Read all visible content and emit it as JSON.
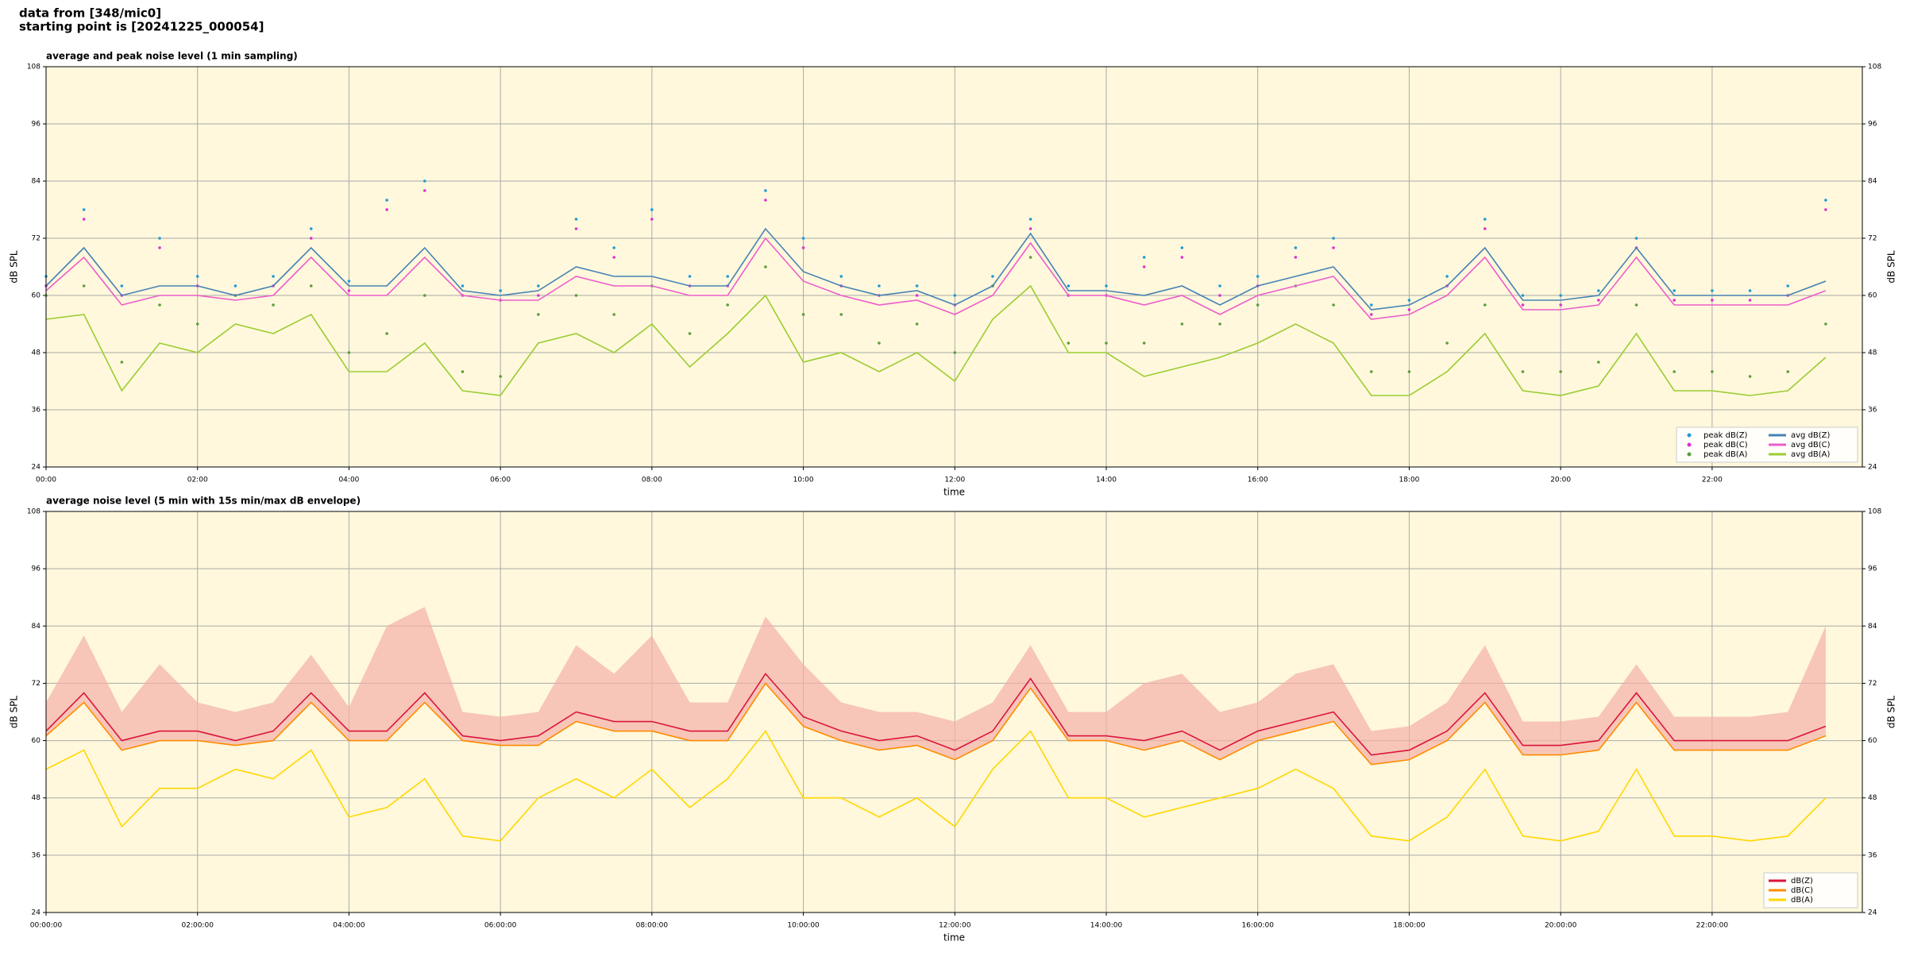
{
  "header": {
    "title": "data from [348/mic0]",
    "subtitle": "starting point is [20241225_000054]"
  },
  "chart_data": [
    {
      "type": "line",
      "title": "average and peak noise level (1 min sampling)",
      "xlabel": "time",
      "ylabel": "dB SPL",
      "grid": true,
      "legend": "lower right",
      "legend_columns": 2,
      "background": "#fff8dc",
      "x": [
        "00:00",
        "00:30",
        "01:00",
        "01:30",
        "02:00",
        "02:30",
        "03:00",
        "03:30",
        "04:00",
        "04:30",
        "05:00",
        "05:30",
        "06:00",
        "06:30",
        "07:00",
        "07:30",
        "08:00",
        "08:30",
        "09:00",
        "09:30",
        "10:00",
        "10:30",
        "11:00",
        "11:30",
        "12:00",
        "12:30",
        "13:00",
        "13:30",
        "14:00",
        "14:30",
        "15:00",
        "15:30",
        "16:00",
        "16:30",
        "17:00",
        "17:30",
        "18:00",
        "18:30",
        "19:00",
        "19:30",
        "20:00",
        "20:30",
        "21:00",
        "21:30",
        "22:00",
        "22:30",
        "23:00",
        "23:30"
      ],
      "xlim": [
        "00:00",
        "23:59"
      ],
      "xticks": [
        "00:00",
        "02:00",
        "04:00",
        "06:00",
        "08:00",
        "10:00",
        "12:00",
        "14:00",
        "16:00",
        "18:00",
        "20:00",
        "22:00"
      ],
      "ylim": [
        24,
        108
      ],
      "yticks": [
        24,
        36,
        48,
        60,
        72,
        84,
        96,
        108
      ],
      "series": [
        {
          "name": "peak dB(Z)",
          "color": "#1f9bd6",
          "style": "points",
          "values": [
            64,
            78,
            62,
            72,
            64,
            62,
            64,
            74,
            63,
            80,
            84,
            62,
            61,
            62,
            76,
            70,
            78,
            64,
            64,
            82,
            72,
            64,
            62,
            62,
            60,
            64,
            76,
            62,
            62,
            68,
            70,
            62,
            64,
            70,
            72,
            58,
            59,
            64,
            76,
            60,
            60,
            61,
            72,
            61,
            61,
            61,
            62,
            80
          ]
        },
        {
          "name": "peak dB(C)",
          "color": "#e030d0",
          "style": "points",
          "values": [
            62,
            76,
            60,
            70,
            62,
            60,
            62,
            72,
            61,
            78,
            82,
            60,
            59,
            60,
            74,
            68,
            76,
            62,
            62,
            80,
            70,
            62,
            60,
            60,
            58,
            62,
            74,
            60,
            60,
            66,
            68,
            60,
            62,
            68,
            70,
            56,
            57,
            62,
            74,
            58,
            58,
            59,
            70,
            59,
            59,
            59,
            60,
            78
          ]
        },
        {
          "name": "peak dB(A)",
          "color": "#5a9e3a",
          "style": "points",
          "values": [
            60,
            62,
            46,
            58,
            54,
            60,
            58,
            62,
            48,
            52,
            60,
            44,
            43,
            56,
            60,
            56,
            62,
            52,
            58,
            66,
            56,
            56,
            50,
            54,
            48,
            62,
            68,
            50,
            50,
            50,
            54,
            54,
            58,
            62,
            58,
            44,
            44,
            50,
            58,
            44,
            44,
            46,
            58,
            44,
            44,
            43,
            44,
            54
          ]
        },
        {
          "name": "avg dB(Z)",
          "color": "#4682b4",
          "style": "line",
          "values": [
            62,
            70,
            60,
            62,
            62,
            60,
            62,
            70,
            62,
            62,
            70,
            61,
            60,
            61,
            66,
            64,
            64,
            62,
            62,
            74,
            65,
            62,
            60,
            61,
            58,
            62,
            73,
            61,
            61,
            60,
            62,
            58,
            62,
            64,
            66,
            57,
            58,
            62,
            70,
            59,
            59,
            60,
            70,
            60,
            60,
            60,
            60,
            63
          ]
        },
        {
          "name": "avg dB(C)",
          "color": "#ee5ccc",
          "style": "line",
          "values": [
            61,
            68,
            58,
            60,
            60,
            59,
            60,
            68,
            60,
            60,
            68,
            60,
            59,
            59,
            64,
            62,
            62,
            60,
            60,
            72,
            63,
            60,
            58,
            59,
            56,
            60,
            71,
            60,
            60,
            58,
            60,
            56,
            60,
            62,
            64,
            55,
            56,
            60,
            68,
            57,
            57,
            58,
            68,
            58,
            58,
            58,
            58,
            61
          ]
        },
        {
          "name": "avg dB(A)",
          "color": "#9acd32",
          "style": "line",
          "values": [
            55,
            56,
            40,
            50,
            48,
            54,
            52,
            56,
            44,
            44,
            50,
            40,
            39,
            50,
            52,
            48,
            54,
            45,
            52,
            60,
            46,
            48,
            44,
            48,
            42,
            55,
            62,
            48,
            48,
            43,
            45,
            47,
            50,
            54,
            50,
            39,
            39,
            44,
            52,
            40,
            39,
            41,
            52,
            40,
            40,
            39,
            40,
            47
          ]
        }
      ]
    },
    {
      "type": "line",
      "title": "average noise level (5 min with 15s min/max dB envelope)",
      "xlabel": "time",
      "ylabel": "dB SPL",
      "grid": true,
      "legend": "lower right",
      "legend_columns": 1,
      "background": "#fff8dc",
      "x": [
        "00:00:00",
        "00:30:00",
        "01:00:00",
        "01:30:00",
        "02:00:00",
        "02:30:00",
        "03:00:00",
        "03:30:00",
        "04:00:00",
        "04:30:00",
        "05:00:00",
        "05:30:00",
        "06:00:00",
        "06:30:00",
        "07:00:00",
        "07:30:00",
        "08:00:00",
        "08:30:00",
        "09:00:00",
        "09:30:00",
        "10:00:00",
        "10:30:00",
        "11:00:00",
        "11:30:00",
        "12:00:00",
        "12:30:00",
        "13:00:00",
        "13:30:00",
        "14:00:00",
        "14:30:00",
        "15:00:00",
        "15:30:00",
        "16:00:00",
        "16:30:00",
        "17:00:00",
        "17:30:00",
        "18:00:00",
        "18:30:00",
        "19:00:00",
        "19:30:00",
        "20:00:00",
        "20:30:00",
        "21:00:00",
        "21:30:00",
        "22:00:00",
        "22:30:00",
        "23:00:00",
        "23:30:00"
      ],
      "xlim": [
        "00:00:00",
        "23:59:00"
      ],
      "xticks": [
        "00:00:00",
        "02:00:00",
        "04:00:00",
        "06:00:00",
        "08:00:00",
        "10:00:00",
        "12:00:00",
        "14:00:00",
        "16:00:00",
        "18:00:00",
        "20:00:00",
        "22:00:00"
      ],
      "ylim": [
        24,
        108
      ],
      "yticks": [
        24,
        36,
        48,
        60,
        72,
        84,
        96,
        108
      ],
      "envelope": {
        "color": "#f4b0a8",
        "values": [
          68,
          82,
          66,
          76,
          68,
          66,
          68,
          78,
          67,
          84,
          88,
          66,
          65,
          66,
          80,
          74,
          82,
          68,
          68,
          86,
          76,
          68,
          66,
          66,
          64,
          68,
          80,
          66,
          66,
          72,
          74,
          66,
          68,
          74,
          76,
          62,
          63,
          68,
          80,
          64,
          64,
          65,
          76,
          65,
          65,
          65,
          66,
          84
        ]
      },
      "series": [
        {
          "name": "dB(Z)",
          "color": "#dc143c",
          "style": "line",
          "values": [
            62,
            70,
            60,
            62,
            62,
            60,
            62,
            70,
            62,
            62,
            70,
            61,
            60,
            61,
            66,
            64,
            64,
            62,
            62,
            74,
            65,
            62,
            60,
            61,
            58,
            62,
            73,
            61,
            61,
            60,
            62,
            58,
            62,
            64,
            66,
            57,
            58,
            62,
            70,
            59,
            59,
            60,
            70,
            60,
            60,
            60,
            60,
            63
          ]
        },
        {
          "name": "dB(C)",
          "color": "#ff8c00",
          "style": "line",
          "values": [
            61,
            68,
            58,
            60,
            60,
            59,
            60,
            68,
            60,
            60,
            68,
            60,
            59,
            59,
            64,
            62,
            62,
            60,
            60,
            72,
            63,
            60,
            58,
            59,
            56,
            60,
            71,
            60,
            60,
            58,
            60,
            56,
            60,
            62,
            64,
            55,
            56,
            60,
            68,
            57,
            57,
            58,
            68,
            58,
            58,
            58,
            58,
            61
          ]
        },
        {
          "name": "dB(A)",
          "color": "#ffd700",
          "style": "line",
          "values": [
            54,
            58,
            42,
            50,
            50,
            54,
            52,
            58,
            44,
            46,
            52,
            40,
            39,
            48,
            52,
            48,
            54,
            46,
            52,
            62,
            48,
            48,
            44,
            48,
            42,
            54,
            62,
            48,
            48,
            44,
            46,
            48,
            50,
            54,
            50,
            40,
            39,
            44,
            54,
            40,
            39,
            41,
            54,
            40,
            40,
            39,
            40,
            48
          ]
        }
      ]
    }
  ]
}
